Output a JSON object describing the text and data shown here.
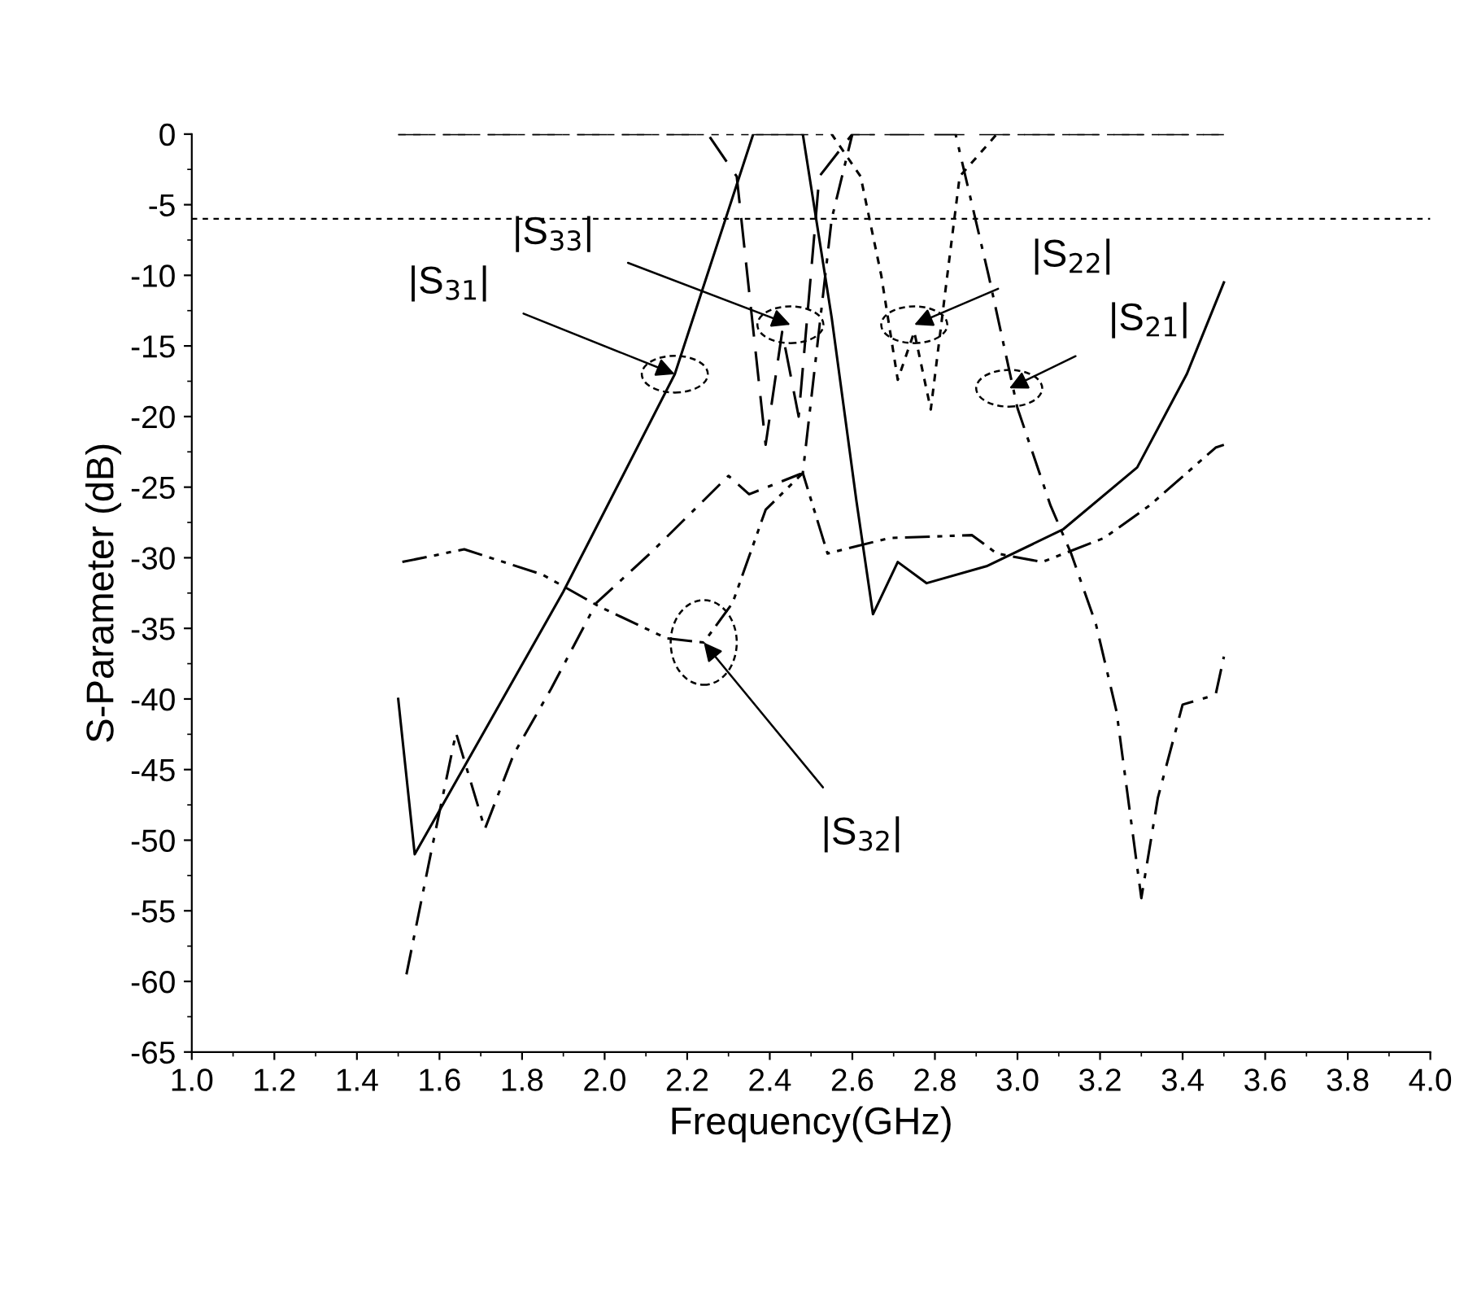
{
  "chart_data": {
    "type": "line",
    "xlabel": "Frequency(GHz)",
    "ylabel": "S-Parameter (dB)",
    "xlim": [
      1.0,
      4.0
    ],
    "ylim": [
      -65,
      0
    ],
    "xticks": [
      {
        "value": 1,
        "label": "1.0"
      },
      1.2,
      1.4,
      1.6,
      1.8,
      {
        "value": 2,
        "label": "2.0"
      },
      2.2,
      2.4,
      2.6,
      2.8,
      {
        "value": 3,
        "label": "3.0"
      },
      3.2,
      3.4,
      3.6,
      3.8,
      {
        "value": 4,
        "label": "4.0"
      }
    ],
    "yticks": [
      0,
      -5,
      -10,
      -15,
      -20,
      -25,
      -30,
      -35,
      -40,
      -45,
      -50,
      -55,
      -60,
      -65
    ],
    "grid": false,
    "legend": false,
    "marker": "none",
    "series": [
      {
        "color": "#000000",
        "line_style": "solid",
        "x": [
          1.5,
          1.54,
          1.9,
          2.17,
          2.36,
          2.42,
          2.48,
          2.55,
          2.61,
          2.65,
          2.71,
          2.78,
          2.925,
          3.11,
          3.29,
          3.41,
          3.5
        ],
        "values": [
          -40,
          -51,
          -32.4,
          -17,
          0,
          0,
          0,
          -13,
          -26,
          -34,
          -30.3,
          -31.8,
          -30.6,
          -28,
          -23.6,
          -17,
          -10.5
        ]
      },
      {
        "color": "#000000",
        "line_style": "dashed",
        "x": [
          1.5,
          2.25,
          2.32,
          2.39,
          2.43,
          2.47,
          2.52,
          2.6,
          3.5
        ],
        "values": [
          0,
          0,
          -3,
          -22,
          -14,
          -20,
          -3,
          0,
          0
        ]
      },
      {
        "color": "#000000",
        "line_style": "dotted",
        "x": [
          1.5,
          2.55,
          2.62,
          2.67,
          2.71,
          2.75,
          2.79,
          2.83,
          2.86,
          2.95,
          3.5
        ],
        "values": [
          0,
          0,
          -3,
          -10,
          -17.4,
          -14,
          -19.5,
          -10,
          -3,
          0,
          0
        ]
      },
      {
        "color": "#000000",
        "line_style": "dashdot",
        "x": [
          1.52,
          1.58,
          1.64,
          1.71,
          1.78,
          1.87,
          1.98,
          2.11,
          2.3,
          2.35,
          2.48,
          2.55,
          2.6,
          2.7,
          2.85,
          2.93,
          3.0,
          3.08,
          3.13,
          3.19,
          3.24,
          3.28,
          3.3,
          3.34,
          3.4,
          3.48,
          3.5
        ],
        "values": [
          -59.5,
          -50.8,
          -42.4,
          -49.2,
          -43.9,
          -39.3,
          -33.2,
          -29.7,
          -24.2,
          -25.5,
          -24,
          -6,
          0,
          0,
          0,
          -10,
          -19.4,
          -26.3,
          -29.7,
          -34.7,
          -40.9,
          -49.7,
          -54.1,
          -47,
          -40.4,
          -39.7,
          -37
        ]
      },
      {
        "color": "#000000",
        "line_style": "dashdotdot",
        "x": [
          1.51,
          1.66,
          1.85,
          1.99,
          2.15,
          2.24,
          2.31,
          2.39,
          2.48,
          2.54,
          2.69,
          2.89,
          2.95,
          3.06,
          3.21,
          3.32,
          3.48,
          3.5
        ],
        "values": [
          -30.3,
          -29.4,
          -31.2,
          -33.5,
          -35.7,
          -36,
          -33.2,
          -26.6,
          -24,
          -29.7,
          -28.6,
          -28.4,
          -29.7,
          -30.3,
          -28.6,
          -26.3,
          -22.2,
          -22
        ]
      }
    ],
    "ref_lines": [
      {
        "axis": "y",
        "value": -6,
        "color": "#000000",
        "line_style": "dotted"
      }
    ],
    "annotations": [
      {
        "text": "|S$_{33}$|",
        "x": 2.45,
        "y": -13.5
      },
      {
        "text": "|S$_{31}$|",
        "x": 2.17,
        "y": -17
      },
      {
        "text": "|S$_{22}$|",
        "x": 2.75,
        "y": -13.5
      },
      {
        "text": "|S$_{21}$|",
        "x": 2.98,
        "y": -18
      },
      {
        "text": "|S$_{32}$|",
        "x": 2.24,
        "y": -36
      }
    ]
  }
}
